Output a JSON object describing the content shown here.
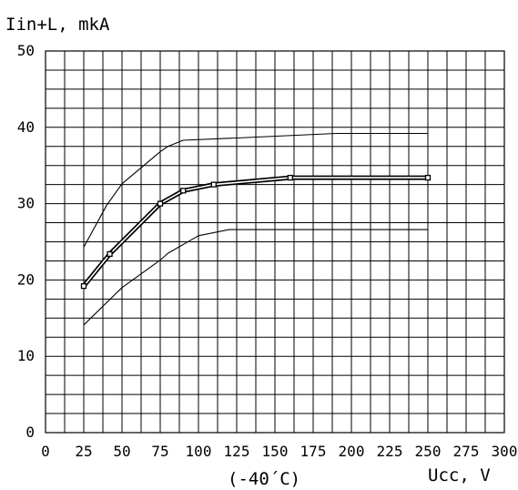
{
  "chart_data": {
    "type": "line",
    "ylabel": "Iin+L, mkA",
    "xlabel": "Ucc, V",
    "annotation": "(-40´C)",
    "xlim": [
      0,
      300
    ],
    "ylim": [
      0,
      50
    ],
    "x_ticks": [
      "0",
      "25",
      "50",
      "75",
      "100",
      "125",
      "150",
      "175",
      "200",
      "225",
      "250",
      "275",
      "300"
    ],
    "y_ticks": [
      "0",
      "10",
      "20",
      "30",
      "40",
      "50"
    ],
    "grid": true,
    "series": [
      {
        "role": "max",
        "points": [
          [
            25,
            24.3
          ],
          [
            40,
            29.8
          ],
          [
            50,
            32.6
          ],
          [
            75,
            36.8
          ],
          [
            80,
            37.5
          ],
          [
            90,
            38.3
          ],
          [
            125,
            38.6
          ],
          [
            190,
            39.2
          ],
          [
            250,
            39.2
          ]
        ]
      },
      {
        "role": "typical",
        "marked": true,
        "points": [
          [
            25,
            19.2
          ],
          [
            42,
            23.4
          ],
          [
            75,
            30.0
          ],
          [
            90,
            31.7
          ],
          [
            110,
            32.5
          ],
          [
            160,
            33.4
          ],
          [
            250,
            33.4
          ]
        ]
      },
      {
        "role": "min",
        "points": [
          [
            25,
            14.1
          ],
          [
            50,
            19.0
          ],
          [
            75,
            22.6
          ],
          [
            80,
            23.5
          ],
          [
            100,
            25.8
          ],
          [
            120,
            26.6
          ],
          [
            250,
            26.6
          ]
        ]
      }
    ]
  },
  "colors": {
    "ink": "#000000",
    "background": "#ffffff"
  }
}
